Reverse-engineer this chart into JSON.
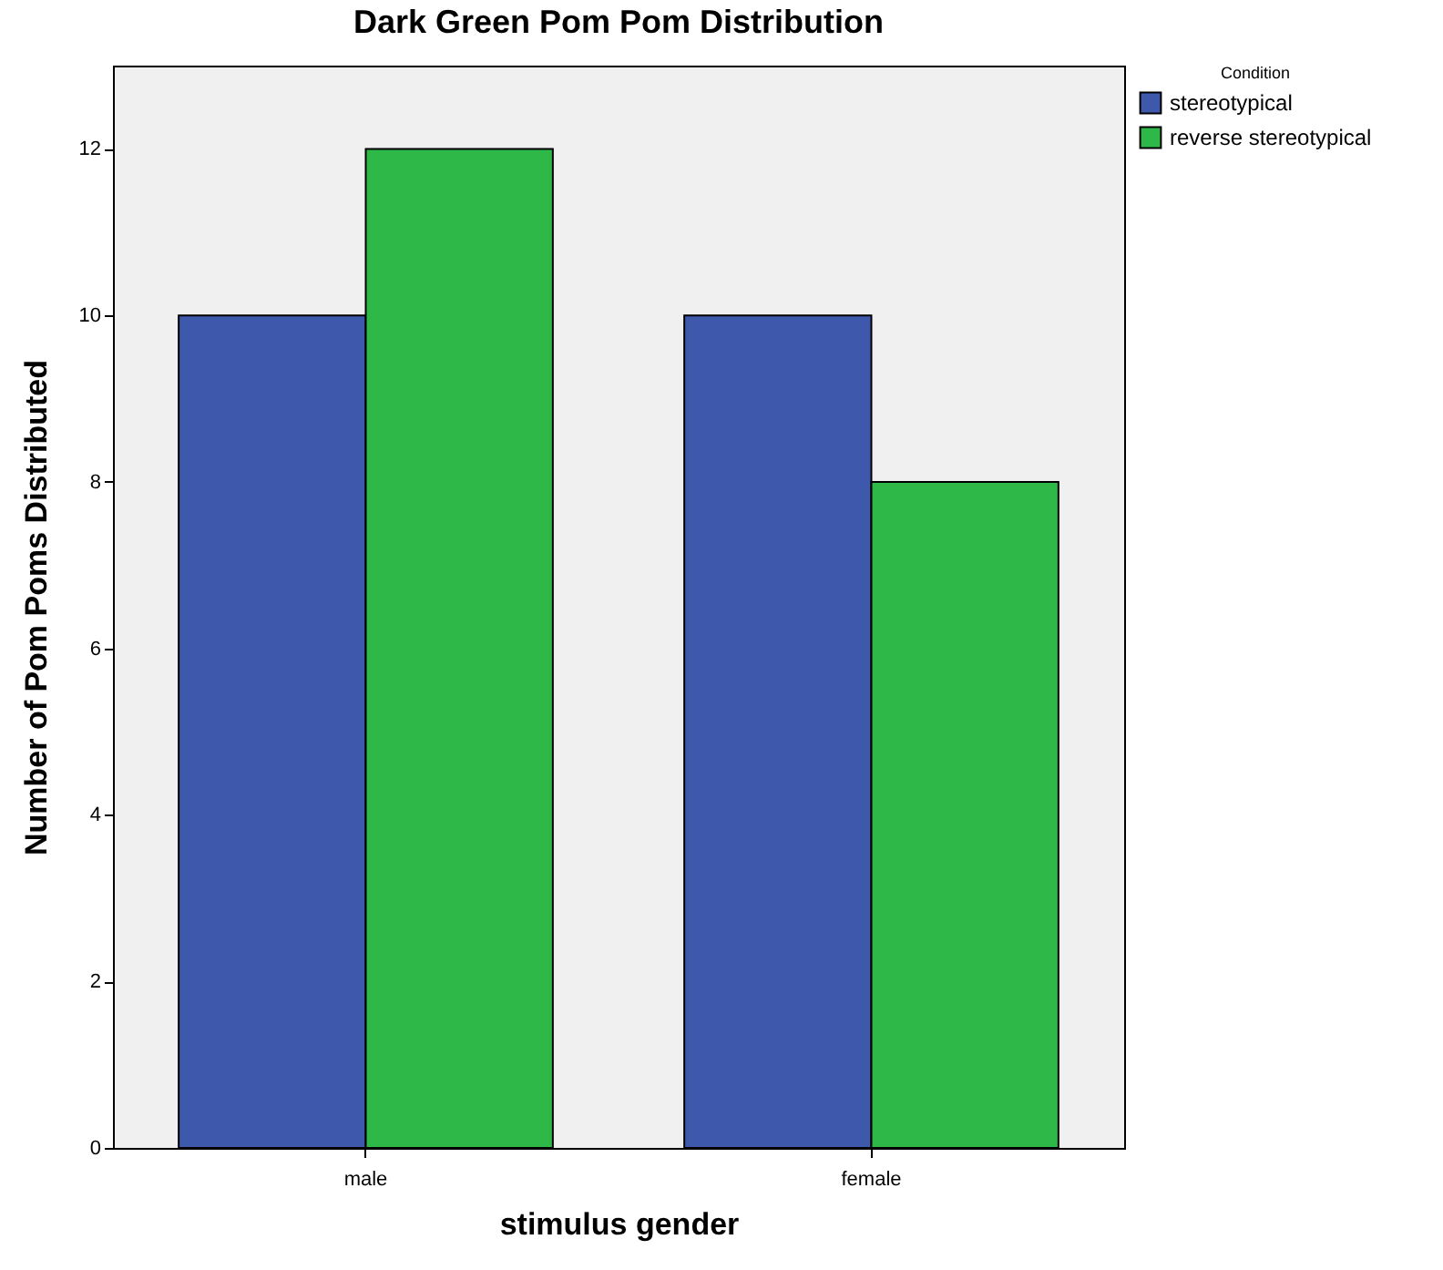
{
  "chart_data": {
    "type": "bar",
    "title": "Dark Green Pom Pom Distribution",
    "xlabel": "stimulus gender",
    "ylabel": "Number of Pom Poms Distributed",
    "legend_title": "Condition",
    "categories": [
      "male",
      "female"
    ],
    "series": [
      {
        "name": "stereotypical",
        "color": "#3e58ac",
        "values": [
          10,
          10
        ]
      },
      {
        "name": "reverse stereotypical",
        "color": "#2eb848",
        "values": [
          12,
          8
        ]
      }
    ],
    "ylim": [
      0,
      13
    ],
    "yticks": [
      0,
      2,
      4,
      6,
      8,
      10,
      12
    ],
    "grid": false,
    "legend": "top right"
  }
}
